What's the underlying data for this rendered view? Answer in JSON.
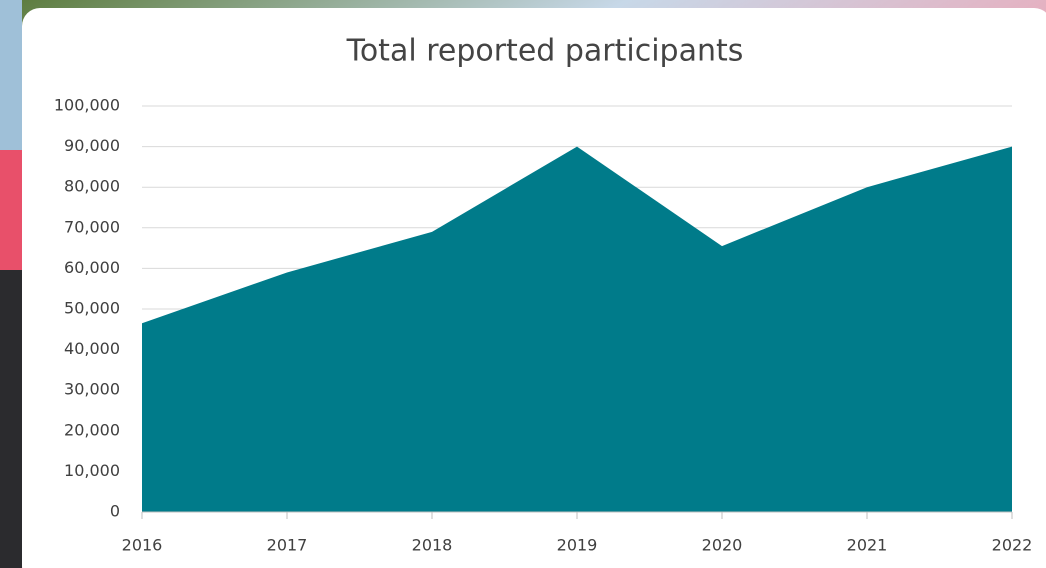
{
  "chart_data": {
    "type": "area",
    "title": "Total reported participants",
    "categories": [
      "2016",
      "2017",
      "2018",
      "2019",
      "2020",
      "2021",
      "2022"
    ],
    "values": [
      46500,
      59000,
      69000,
      90000,
      65500,
      80000,
      90000
    ],
    "color": "#007b8a",
    "ylim": [
      0,
      100000
    ],
    "yticks": [
      0,
      {
        "value": 10000,
        "label": "10,000"
      },
      {
        "value": 20000,
        "label": "20,000"
      },
      {
        "value": 30000,
        "label": "30,000"
      },
      {
        "value": 40000,
        "label": "40,000"
      },
      {
        "value": 50000,
        "label": "50,000"
      },
      {
        "value": 60000,
        "label": "60,000"
      },
      {
        "value": 70000,
        "label": "70,000"
      },
      {
        "value": 80000,
        "label": "80,000"
      },
      {
        "value": 90000,
        "label": "90,000"
      },
      {
        "value": 100000,
        "label": "100,000"
      }
    ],
    "grid": true
  }
}
